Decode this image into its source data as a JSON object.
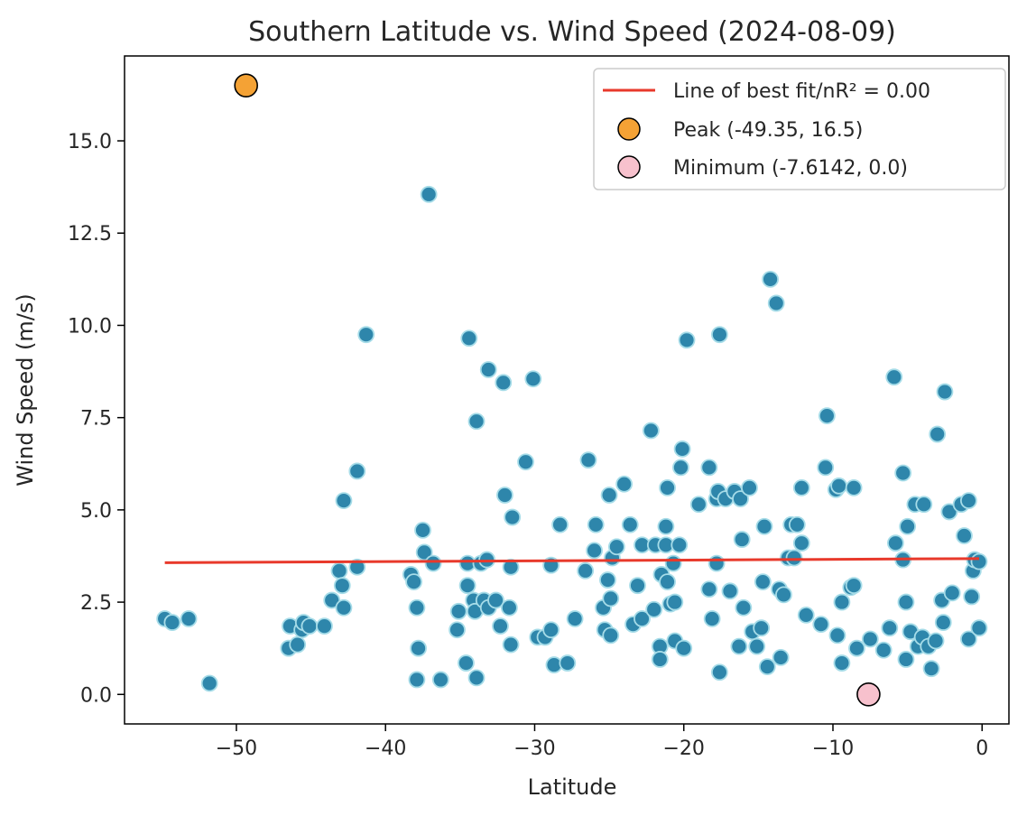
{
  "chart_data": {
    "type": "scatter",
    "title": "Southern Latitude vs. Wind Speed (2024-08-09)",
    "xlabel": "Latitude",
    "ylabel": "Wind Speed (m/s)",
    "xlim": [
      -57.5,
      1.8
    ],
    "ylim": [
      -0.8,
      17.3
    ],
    "xticks": [
      -50,
      -40,
      -30,
      -20,
      -10,
      0
    ],
    "xtick_labels": [
      "−50",
      "−40",
      "−30",
      "−20",
      "−10",
      "0"
    ],
    "yticks": [
      0.0,
      2.5,
      5.0,
      7.5,
      10.0,
      12.5,
      15.0
    ],
    "ytick_labels": [
      "0.0",
      "2.5",
      "5.0",
      "7.5",
      "10.0",
      "12.5",
      "15.0"
    ],
    "grid": false,
    "legend_position": "top-right",
    "colors": {
      "points_fill": "#2e86ab",
      "points_edge": "#a6dce8",
      "fit_line": "#e8392b",
      "peak": "#f4a235",
      "minimum": "#f7c1cd",
      "marker_edge": "#000000"
    },
    "fit_line": {
      "label": "Line of best fit/nR² = 0.00",
      "x": [
        -54.8,
        -0.2
      ],
      "y": [
        3.57,
        3.68
      ]
    },
    "peak": {
      "label": "Peak (-49.35, 16.5)",
      "x": -49.35,
      "y": 16.5
    },
    "minimum": {
      "label": "Minimum (-7.6142, 0.0)",
      "x": -7.6142,
      "y": 0.0
    },
    "points": [
      [
        -54.8,
        2.05
      ],
      [
        -54.3,
        1.95
      ],
      [
        -53.2,
        2.05
      ],
      [
        -51.8,
        0.3
      ],
      [
        -46.5,
        1.25
      ],
      [
        -46.4,
        1.85
      ],
      [
        -45.9,
        1.35
      ],
      [
        -45.6,
        1.75
      ],
      [
        -45.5,
        1.95
      ],
      [
        -45.1,
        1.85
      ],
      [
        -44.1,
        1.85
      ],
      [
        -43.6,
        2.55
      ],
      [
        -43.1,
        3.35
      ],
      [
        -42.9,
        2.95
      ],
      [
        -42.8,
        5.25
      ],
      [
        -42.8,
        2.35
      ],
      [
        -41.9,
        6.05
      ],
      [
        -41.9,
        3.45
      ],
      [
        -41.3,
        9.75
      ],
      [
        -38.3,
        3.25
      ],
      [
        -38.1,
        3.05
      ],
      [
        -37.9,
        2.35
      ],
      [
        -37.9,
        0.4
      ],
      [
        -37.8,
        1.25
      ],
      [
        -37.5,
        4.45
      ],
      [
        -37.4,
        3.85
      ],
      [
        -37.1,
        13.55
      ],
      [
        -36.8,
        3.55
      ],
      [
        -36.3,
        0.4
      ],
      [
        -35.2,
        1.75
      ],
      [
        -35.1,
        2.25
      ],
      [
        -34.6,
        0.85
      ],
      [
        -34.5,
        3.55
      ],
      [
        -34.5,
        2.95
      ],
      [
        -34.4,
        9.65
      ],
      [
        -34.1,
        2.55
      ],
      [
        -34.0,
        2.25
      ],
      [
        -33.9,
        7.4
      ],
      [
        -33.9,
        0.45
      ],
      [
        -33.6,
        3.55
      ],
      [
        -33.4,
        2.55
      ],
      [
        -33.2,
        3.65
      ],
      [
        -33.1,
        8.8
      ],
      [
        -33.1,
        2.35
      ],
      [
        -32.6,
        2.55
      ],
      [
        -32.3,
        1.85
      ],
      [
        -32.1,
        8.45
      ],
      [
        -32.0,
        5.4
      ],
      [
        -31.7,
        2.35
      ],
      [
        -31.6,
        1.35
      ],
      [
        -31.6,
        3.45
      ],
      [
        -31.5,
        4.8
      ],
      [
        -30.6,
        6.3
      ],
      [
        -30.1,
        8.55
      ],
      [
        -29.8,
        1.55
      ],
      [
        -29.3,
        1.55
      ],
      [
        -28.9,
        1.75
      ],
      [
        -28.9,
        3.5
      ],
      [
        -28.7,
        0.8
      ],
      [
        -28.3,
        4.6
      ],
      [
        -27.8,
        0.85
      ],
      [
        -27.3,
        2.05
      ],
      [
        -26.6,
        3.35
      ],
      [
        -26.4,
        6.35
      ],
      [
        -26.0,
        3.9
      ],
      [
        -25.9,
        4.6
      ],
      [
        -25.4,
        2.35
      ],
      [
        -25.3,
        1.75
      ],
      [
        -25.1,
        3.1
      ],
      [
        -25.0,
        5.4
      ],
      [
        -24.9,
        1.6
      ],
      [
        -24.9,
        2.6
      ],
      [
        -24.8,
        3.7
      ],
      [
        -24.5,
        4.0
      ],
      [
        -24.0,
        5.7
      ],
      [
        -23.6,
        4.6
      ],
      [
        -23.4,
        1.9
      ],
      [
        -23.1,
        2.95
      ],
      [
        -22.8,
        2.05
      ],
      [
        -22.8,
        4.05
      ],
      [
        -22.2,
        7.15
      ],
      [
        -22.0,
        2.3
      ],
      [
        -21.9,
        4.05
      ],
      [
        -21.6,
        1.3
      ],
      [
        -21.6,
        0.95
      ],
      [
        -21.5,
        3.25
      ],
      [
        -21.2,
        4.55
      ],
      [
        -21.2,
        4.05
      ],
      [
        -21.1,
        5.6
      ],
      [
        -21.1,
        3.05
      ],
      [
        -20.9,
        2.45
      ],
      [
        -20.7,
        3.55
      ],
      [
        -20.6,
        2.5
      ],
      [
        -20.6,
        1.45
      ],
      [
        -20.3,
        4.05
      ],
      [
        -20.2,
        6.15
      ],
      [
        -20.1,
        6.65
      ],
      [
        -20.0,
        1.25
      ],
      [
        -19.8,
        9.6
      ],
      [
        -19.0,
        5.15
      ],
      [
        -18.3,
        6.15
      ],
      [
        -18.3,
        2.85
      ],
      [
        -18.1,
        2.05
      ],
      [
        -17.8,
        5.3
      ],
      [
        -17.8,
        3.55
      ],
      [
        -17.7,
        5.5
      ],
      [
        -17.6,
        9.75
      ],
      [
        -17.6,
        0.6
      ],
      [
        -17.2,
        5.3
      ],
      [
        -16.9,
        2.8
      ],
      [
        -16.6,
        5.5
      ],
      [
        -16.3,
        1.3
      ],
      [
        -16.2,
        5.3
      ],
      [
        -16.1,
        4.2
      ],
      [
        -16.0,
        2.35
      ],
      [
        -15.6,
        5.6
      ],
      [
        -15.4,
        1.7
      ],
      [
        -15.1,
        1.3
      ],
      [
        -14.8,
        1.8
      ],
      [
        -14.7,
        3.05
      ],
      [
        -14.6,
        4.55
      ],
      [
        -14.4,
        0.75
      ],
      [
        -14.2,
        11.25
      ],
      [
        -13.8,
        10.6
      ],
      [
        -13.6,
        2.85
      ],
      [
        -13.5,
        1.0
      ],
      [
        -13.3,
        2.7
      ],
      [
        -13.0,
        3.7
      ],
      [
        -12.8,
        4.6
      ],
      [
        -12.6,
        3.7
      ],
      [
        -12.4,
        4.6
      ],
      [
        -12.1,
        4.1
      ],
      [
        -12.1,
        5.6
      ],
      [
        -11.8,
        2.15
      ],
      [
        -10.8,
        1.9
      ],
      [
        -10.5,
        6.15
      ],
      [
        -10.4,
        7.55
      ],
      [
        -9.8,
        5.55
      ],
      [
        -9.7,
        1.6
      ],
      [
        -9.6,
        5.65
      ],
      [
        -9.4,
        2.5
      ],
      [
        -9.4,
        0.85
      ],
      [
        -8.8,
        2.9
      ],
      [
        -8.6,
        5.6
      ],
      [
        -8.6,
        2.95
      ],
      [
        -8.4,
        1.25
      ],
      [
        -7.5,
        1.5
      ],
      [
        -6.6,
        1.2
      ],
      [
        -6.2,
        1.8
      ],
      [
        -5.9,
        8.6
      ],
      [
        -5.8,
        4.1
      ],
      [
        -5.3,
        6.0
      ],
      [
        -5.3,
        3.65
      ],
      [
        -5.1,
        2.5
      ],
      [
        -5.1,
        0.95
      ],
      [
        -5.0,
        4.55
      ],
      [
        -4.8,
        1.7
      ],
      [
        -4.5,
        5.15
      ],
      [
        -4.3,
        1.3
      ],
      [
        -4.0,
        1.55
      ],
      [
        -3.9,
        5.15
      ],
      [
        -3.6,
        1.3
      ],
      [
        -3.4,
        0.7
      ],
      [
        -3.1,
        1.45
      ],
      [
        -3.0,
        7.05
      ],
      [
        -2.7,
        2.55
      ],
      [
        -2.6,
        1.95
      ],
      [
        -2.5,
        8.2
      ],
      [
        -2.2,
        4.95
      ],
      [
        -2.0,
        2.75
      ],
      [
        -1.4,
        5.15
      ],
      [
        -1.2,
        4.3
      ],
      [
        -0.9,
        5.25
      ],
      [
        -0.9,
        1.5
      ],
      [
        -0.7,
        2.65
      ],
      [
        -0.6,
        3.35
      ],
      [
        -0.5,
        3.65
      ],
      [
        -0.2,
        3.6
      ],
      [
        -0.2,
        1.8
      ]
    ]
  }
}
